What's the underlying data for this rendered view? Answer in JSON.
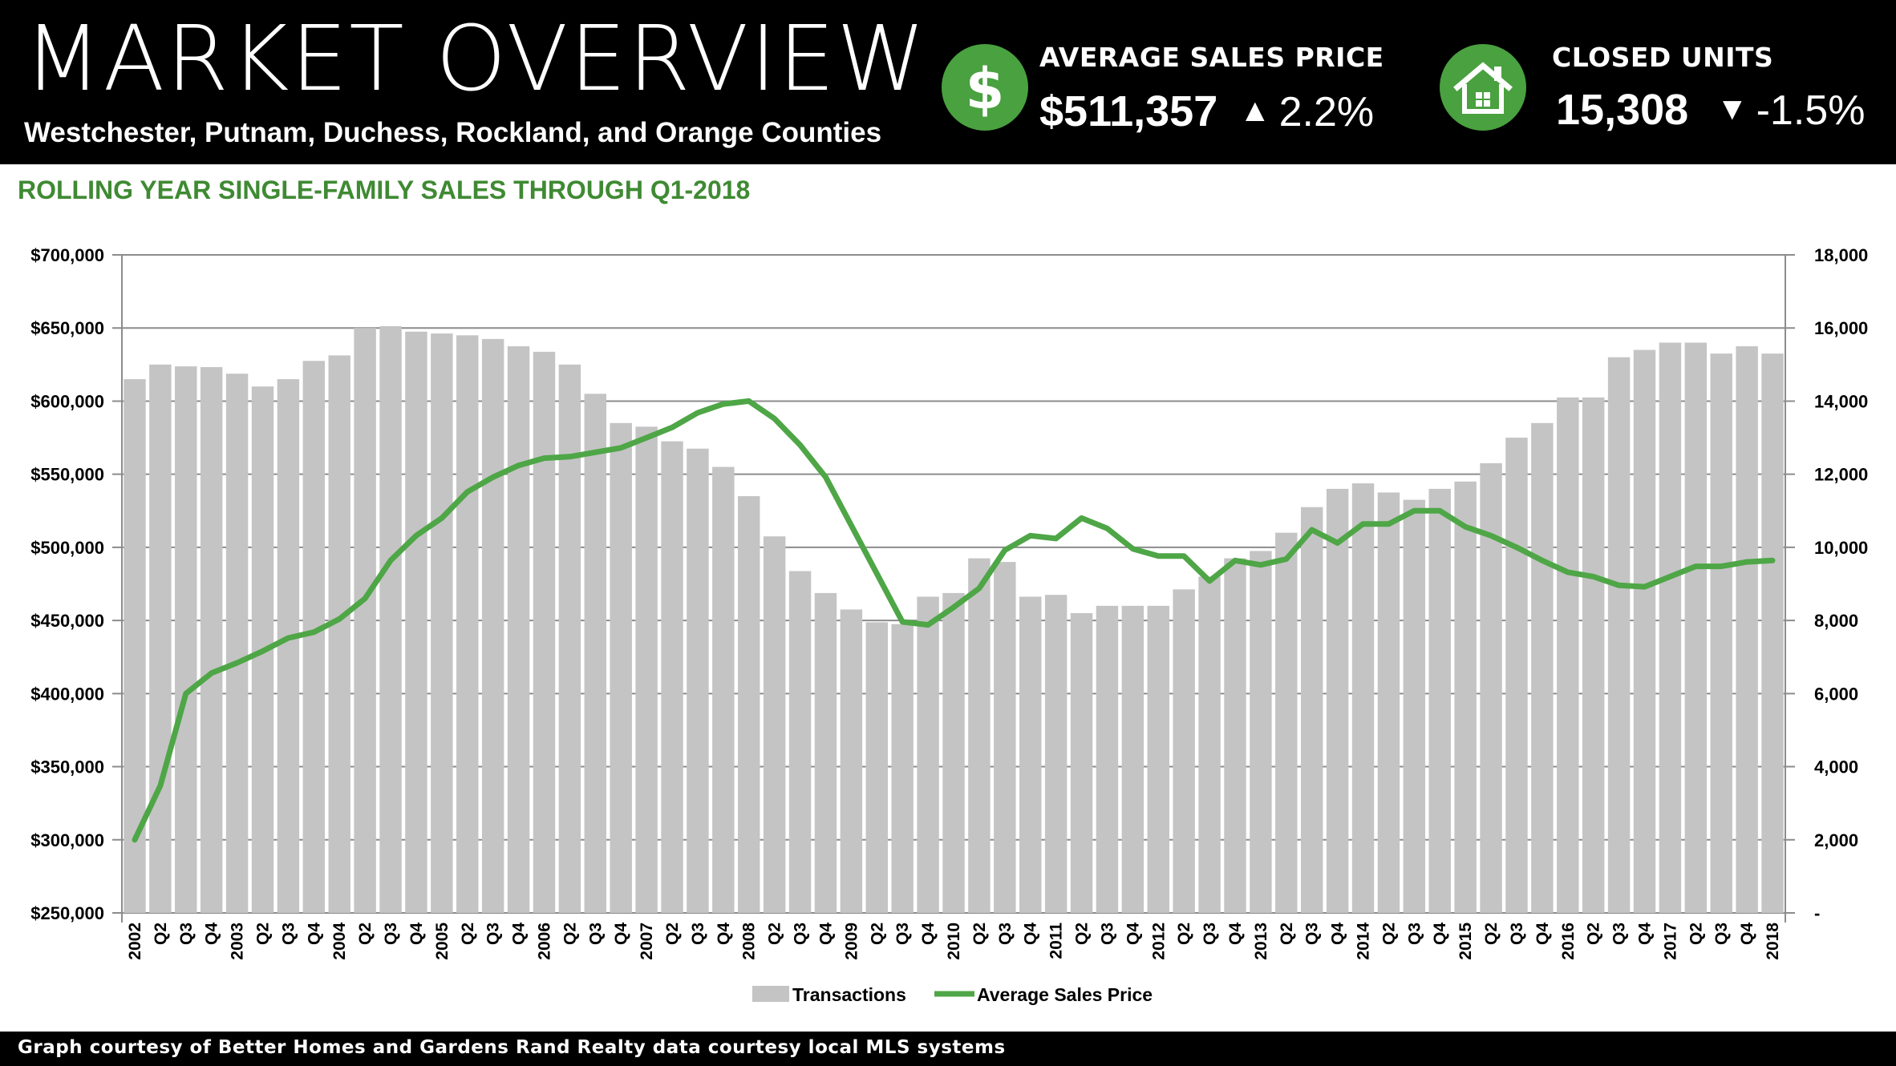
{
  "header": {
    "title": "MARKET OVERVIEW",
    "subtitle": "Westchester, Putnam, Duchess, Rockland, and Orange Counties",
    "kpis": [
      {
        "icon": "dollar-icon",
        "label": "AVERAGE SALES PRICE",
        "value": "$511,357",
        "direction": "up",
        "arrow": "▲",
        "change": "2.2%"
      },
      {
        "icon": "house-icon",
        "label": "CLOSED UNITS",
        "value": "15,308",
        "direction": "down",
        "arrow": "▼",
        "change": "-1.5%"
      }
    ]
  },
  "colors": {
    "header_bg": "#000000",
    "accent_green": "#49a13f",
    "line_green": "#4ea646",
    "bar_gray": "#c4c4c4",
    "title_green": "#3f8a33"
  },
  "chart_title": "ROLLING YEAR SINGLE-FAMILY SALES THROUGH Q1-2018",
  "footer": "Graph courtesy of Better Homes and Gardens Rand Realty data courtesy local MLS systems",
  "chart_data": {
    "type": "bar+line",
    "title": "ROLLING YEAR SINGLE-FAMILY SALES THROUGH Q1-2018",
    "categories": [
      "2002",
      "Q2",
      "Q3",
      "Q4",
      "2003",
      "Q2",
      "Q3",
      "Q4",
      "2004",
      "Q2",
      "Q3",
      "Q4",
      "2005",
      "Q2",
      "Q3",
      "Q4",
      "2006",
      "Q2",
      "Q3",
      "Q4",
      "2007",
      "Q2",
      "Q3",
      "Q4",
      "2008",
      "Q2",
      "Q3",
      "Q4",
      "2009",
      "Q2",
      "Q3",
      "Q4",
      "2010",
      "Q2",
      "Q3",
      "Q4",
      "2011",
      "Q2",
      "Q3",
      "Q4",
      "2012",
      "Q2",
      "Q3",
      "Q4",
      "2013",
      "Q2",
      "Q3",
      "Q4",
      "2014",
      "Q2",
      "Q3",
      "Q4",
      "2015",
      "Q2",
      "Q3",
      "Q4",
      "2016",
      "Q2",
      "Q3",
      "Q4",
      "2017",
      "Q2",
      "Q3",
      "Q4",
      "2018"
    ],
    "series": [
      {
        "name": "Transactions",
        "type": "bar",
        "axis": "right",
        "values": [
          14600,
          15000,
          14950,
          14930,
          14750,
          14400,
          14600,
          15100,
          15250,
          16000,
          16050,
          15900,
          15850,
          15800,
          15700,
          15500,
          15350,
          15000,
          14200,
          13400,
          13300,
          12900,
          12700,
          12200,
          11400,
          10300,
          9350,
          8750,
          8300,
          7950,
          7900,
          8650,
          8750,
          9700,
          9600,
          8650,
          8700,
          8200,
          8400,
          8400,
          8400,
          8850,
          9200,
          9700,
          9900,
          10400,
          11100,
          11600,
          11750,
          11500,
          11300,
          11600,
          11800,
          12300,
          13000,
          13400,
          14100,
          14100,
          15200,
          15400,
          15600,
          15600,
          15300,
          15500,
          15300
        ]
      },
      {
        "name": "Average Sales Price",
        "type": "line",
        "axis": "left",
        "values": [
          300000,
          337000,
          400000,
          414000,
          421000,
          429000,
          438000,
          442000,
          451000,
          465000,
          491000,
          508000,
          520000,
          538000,
          548000,
          556000,
          561000,
          562000,
          565000,
          568000,
          575000,
          582000,
          592000,
          598000,
          600000,
          588000,
          570000,
          548000,
          515000,
          482000,
          449000,
          447000,
          459000,
          472000,
          498000,
          508000,
          506000,
          520000,
          513000,
          499000,
          494000,
          494000,
          477000,
          491000,
          488000,
          492000,
          512000,
          503000,
          516000,
          516000,
          525000,
          525000,
          514000,
          508000,
          500000,
          491000,
          483000,
          480000,
          474000,
          473000,
          480000,
          487000,
          487000,
          490000,
          491000
        ]
      }
    ],
    "y_left": {
      "min": 250000,
      "max": 700000,
      "ticks": [
        "$250,000",
        "$300,000",
        "$350,000",
        "$400,000",
        "$450,000",
        "$500,000",
        "$550,000",
        "$600,000",
        "$650,000",
        "$700,000"
      ]
    },
    "y_right": {
      "min": 0,
      "max": 18000,
      "ticks": [
        "-",
        "2,000",
        "4,000",
        "6,000",
        "8,000",
        "10,000",
        "12,000",
        "14,000",
        "16,000",
        "18,000"
      ]
    },
    "grid": true,
    "legend_position": "bottom-center"
  }
}
